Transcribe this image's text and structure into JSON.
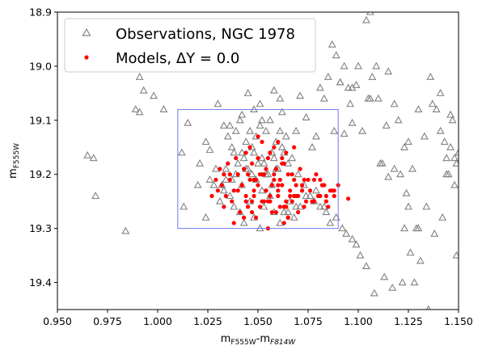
{
  "chart_data": {
    "type": "scatter",
    "xlabel": "mF555W-mF814W",
    "ylabel": "mF555W",
    "xlim": [
      0.95,
      1.15
    ],
    "ylim": [
      19.45,
      18.9
    ],
    "y_inverted": true,
    "grid": false,
    "legend_position": "top-left",
    "x_ticks": [
      "0.950",
      "0.975",
      "1.000",
      "1.025",
      "1.050",
      "1.075",
      "1.100",
      "1.125",
      "1.150"
    ],
    "y_ticks": [
      "18.9",
      "19.0",
      "19.1",
      "19.2",
      "19.3",
      "19.4"
    ],
    "series": [
      {
        "name": "Observations, NGC 1978",
        "marker": "open-triangle",
        "color": "#808080",
        "x": [
          0.965,
          0.968,
          0.969,
          0.984,
          0.989,
          0.991,
          0.991,
          0.993,
          0.998,
          1.003,
          1.015,
          1.024,
          1.026,
          1.012,
          1.021,
          1.033,
          1.03,
          1.045,
          1.042,
          1.052,
          1.058,
          1.061,
          1.048,
          1.051,
          1.062,
          1.071,
          1.074,
          1.077,
          1.079,
          1.083,
          1.088,
          1.091,
          1.093,
          1.095,
          1.097,
          1.099,
          1.104,
          1.106,
          1.107,
          1.11,
          1.112,
          1.115,
          1.118,
          1.121,
          1.123,
          1.124,
          1.125,
          1.128,
          1.129,
          1.131,
          1.135,
          1.139,
          1.141,
          1.143,
          1.144,
          1.145,
          1.146,
          1.147,
          1.148,
          1.149,
          1.15,
          1.149,
          1.142,
          1.138,
          1.134,
          1.13,
          1.126,
          1.122,
          1.117,
          1.113,
          1.108,
          1.104,
          1.101,
          1.099,
          1.097,
          1.094,
          1.092,
          1.089,
          1.086,
          1.084,
          1.081,
          1.078,
          1.076,
          1.073,
          1.071,
          1.068,
          1.066,
          1.063,
          1.061,
          1.058,
          1.056,
          1.053,
          1.051,
          1.048,
          1.046,
          1.043,
          1.041,
          1.038,
          1.036,
          1.033,
          1.031,
          1.028,
          1.026,
          1.035,
          1.039,
          1.044,
          1.049,
          1.054,
          1.059,
          1.064,
          1.069,
          1.037,
          1.042,
          1.047,
          1.052,
          1.057,
          1.062,
          1.067,
          1.04,
          1.045,
          1.05,
          1.055,
          1.06,
          1.065,
          1.07,
          1.036,
          1.041,
          1.046,
          1.051,
          1.056,
          1.061,
          1.038,
          1.043,
          1.048,
          1.053,
          1.058,
          1.063,
          1.034,
          1.039,
          1.044,
          1.049,
          1.054,
          1.059,
          1.032,
          1.037,
          1.042,
          1.047,
          1.052,
          1.057,
          1.081,
          1.085,
          1.089,
          1.093,
          1.097,
          1.102,
          1.106,
          1.111,
          1.115,
          1.12,
          1.125,
          1.13,
          1.136,
          1.141,
          1.146,
          1.087,
          1.091,
          1.096,
          1.1,
          1.105,
          1.109,
          1.114,
          1.118,
          1.123,
          1.127,
          1.133,
          1.137,
          1.144,
          1.148,
          1.024,
          1.02,
          1.013,
          1.029,
          1.034,
          1.083,
          1.079,
          1.074,
          1.069,
          1.065
        ],
        "y": [
          19.165,
          19.17,
          19.24,
          19.305,
          19.08,
          19.02,
          19.085,
          19.045,
          19.055,
          19.08,
          19.105,
          19.14,
          19.155,
          19.16,
          19.18,
          19.11,
          19.07,
          19.05,
          19.09,
          19.1,
          19.045,
          19.06,
          19.08,
          19.07,
          19.085,
          19.055,
          19.095,
          19.15,
          19.13,
          19.06,
          19.12,
          19.03,
          19.125,
          19.04,
          19.105,
          19.035,
          18.915,
          18.9,
          19.02,
          19.06,
          19.18,
          19.205,
          19.19,
          19.2,
          19.3,
          19.235,
          19.26,
          19.4,
          19.3,
          19.36,
          19.45,
          19.08,
          19.12,
          19.14,
          19.17,
          19.2,
          19.15,
          19.1,
          19.22,
          19.18,
          19.16,
          19.35,
          19.28,
          19.31,
          19.26,
          19.3,
          19.345,
          19.4,
          19.41,
          19.39,
          19.42,
          19.37,
          19.35,
          19.33,
          19.32,
          19.31,
          19.3,
          19.28,
          19.29,
          19.27,
          19.26,
          19.25,
          19.24,
          19.22,
          19.26,
          19.28,
          19.25,
          19.27,
          19.29,
          19.27,
          19.24,
          19.26,
          19.3,
          19.28,
          19.25,
          19.29,
          19.27,
          19.26,
          19.24,
          19.23,
          19.25,
          19.22,
          19.21,
          19.13,
          19.12,
          19.14,
          19.13,
          19.12,
          19.14,
          19.13,
          19.12,
          19.15,
          19.16,
          19.15,
          19.17,
          19.16,
          19.15,
          19.17,
          19.18,
          19.19,
          19.18,
          19.2,
          19.19,
          19.18,
          19.2,
          19.11,
          19.1,
          19.12,
          19.11,
          19.1,
          19.12,
          19.16,
          19.17,
          19.16,
          19.18,
          19.17,
          19.16,
          19.19,
          19.2,
          19.19,
          19.21,
          19.2,
          19.19,
          19.22,
          19.21,
          19.22,
          19.2,
          19.23,
          19.22,
          19.04,
          19.02,
          18.98,
          19.0,
          19.04,
          19.12,
          19.06,
          19.18,
          19.01,
          19.1,
          19.14,
          19.08,
          19.02,
          19.05,
          19.09,
          18.96,
          19.03,
          19.07,
          19.0,
          19.06,
          19.0,
          19.11,
          19.07,
          19.15,
          19.19,
          19.13,
          19.07,
          19.2,
          19.17,
          19.28,
          19.22,
          19.26,
          19.19,
          19.21,
          19.26,
          19.23,
          19.24,
          19.26,
          19.27
        ]
      },
      {
        "name": "Models, ΔY = 0.0",
        "marker": "filled-circle",
        "color": "#ff0000",
        "x": [
          1.03,
          1.032,
          1.034,
          1.036,
          1.038,
          1.04,
          1.042,
          1.044,
          1.046,
          1.048,
          1.05,
          1.052,
          1.054,
          1.056,
          1.058,
          1.06,
          1.062,
          1.064,
          1.066,
          1.068,
          1.07,
          1.072,
          1.074,
          1.076,
          1.078,
          1.08,
          1.082,
          1.084,
          1.086,
          1.088,
          1.09,
          1.095,
          1.031,
          1.035,
          1.039,
          1.043,
          1.047,
          1.051,
          1.055,
          1.059,
          1.063,
          1.067,
          1.071,
          1.075,
          1.079,
          1.083,
          1.087,
          1.033,
          1.037,
          1.041,
          1.045,
          1.049,
          1.053,
          1.057,
          1.061,
          1.065,
          1.069,
          1.073,
          1.077,
          1.081,
          1.085,
          1.029,
          1.036,
          1.042,
          1.048,
          1.054,
          1.06,
          1.066,
          1.072,
          1.078,
          1.084,
          1.044,
          1.046,
          1.05,
          1.052,
          1.056,
          1.058,
          1.062,
          1.064,
          1.068,
          1.04,
          1.044,
          1.048,
          1.052,
          1.056,
          1.06,
          1.064,
          1.068,
          1.072,
          1.045,
          1.049,
          1.053,
          1.057,
          1.061,
          1.065,
          1.069,
          1.073,
          1.047,
          1.051,
          1.055,
          1.059,
          1.063,
          1.067,
          1.054,
          1.058,
          1.062,
          1.05,
          1.06,
          1.043,
          1.065,
          1.038,
          1.07,
          1.055,
          1.047,
          1.063,
          1.027,
          1.033,
          1.081,
          1.088
        ],
        "y": [
          19.23,
          19.22,
          19.24,
          19.21,
          19.23,
          19.2,
          19.22,
          19.25,
          19.21,
          19.24,
          19.22,
          19.2,
          19.23,
          19.25,
          19.21,
          19.24,
          19.22,
          19.26,
          19.23,
          19.21,
          19.24,
          19.22,
          19.25,
          19.23,
          19.21,
          19.24,
          19.22,
          19.25,
          19.23,
          19.24,
          19.22,
          19.245,
          19.19,
          19.18,
          19.17,
          19.19,
          19.18,
          19.2,
          19.17,
          19.19,
          19.18,
          19.2,
          19.19,
          19.21,
          19.2,
          19.22,
          19.23,
          19.26,
          19.25,
          19.27,
          19.26,
          19.28,
          19.25,
          19.27,
          19.26,
          19.28,
          19.24,
          19.26,
          19.25,
          19.24,
          19.26,
          19.21,
          19.2,
          19.22,
          19.21,
          19.23,
          19.22,
          19.24,
          19.23,
          19.25,
          19.24,
          19.16,
          19.15,
          19.17,
          19.14,
          19.16,
          19.15,
          19.17,
          19.16,
          19.15,
          19.23,
          19.24,
          19.23,
          19.25,
          19.24,
          19.23,
          19.25,
          19.24,
          19.23,
          19.2,
          19.21,
          19.2,
          19.22,
          19.21,
          19.2,
          19.22,
          19.21,
          19.25,
          19.26,
          19.25,
          19.27,
          19.26,
          19.25,
          19.19,
          19.2,
          19.18,
          19.13,
          19.14,
          19.28,
          19.28,
          19.29,
          19.27,
          19.3,
          19.27,
          19.29,
          19.24,
          19.2,
          19.21,
          19.23
        ]
      }
    ]
  },
  "legend": {
    "items": [
      {
        "label": "Observations, NGC 1978"
      },
      {
        "label": "Models, ΔY = 0.0"
      }
    ]
  },
  "selection_box": {
    "x": [
      1.01,
      1.09
    ],
    "y": [
      19.08,
      19.3
    ],
    "color": "#6d7bea"
  }
}
